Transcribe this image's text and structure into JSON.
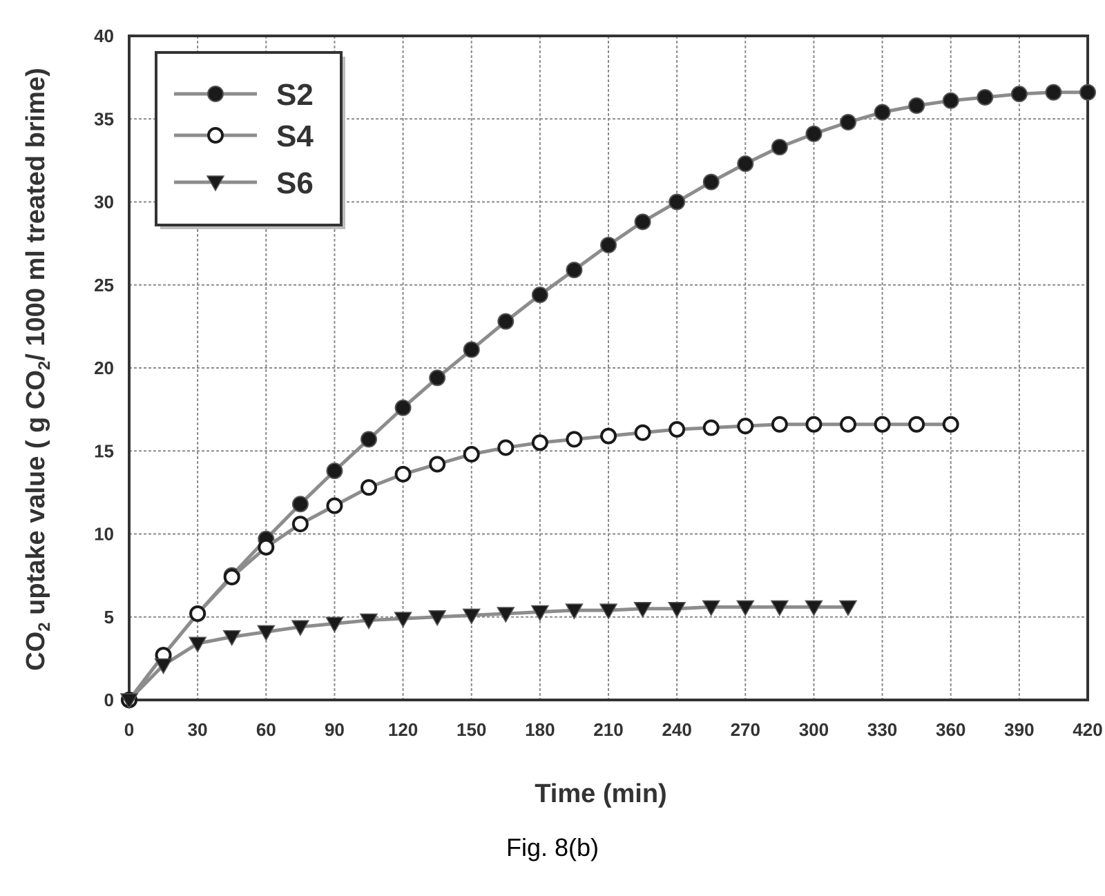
{
  "chart_data": {
    "type": "line",
    "xlabel": "Time (min)",
    "ylabel_parts": [
      "CO",
      "2",
      " uptake value ( g CO",
      "2",
      "/ 1000 ml treated brime)"
    ],
    "xlim": [
      0,
      420
    ],
    "ylim": [
      0,
      40
    ],
    "xticks": [
      0,
      30,
      60,
      90,
      120,
      150,
      180,
      210,
      240,
      270,
      300,
      330,
      360,
      390,
      420
    ],
    "xtick_labels": [
      "0",
      "30",
      "60",
      "90",
      "120",
      "150",
      "180",
      "210",
      "240",
      "270",
      "300",
      "330",
      "360",
      "390",
      "420"
    ],
    "yticks": [
      0,
      5,
      10,
      15,
      20,
      25,
      30,
      35,
      40
    ],
    "ytick_labels": [
      "0",
      "5",
      "10",
      "15",
      "20",
      "25",
      "30",
      "35",
      "40"
    ],
    "grid": true,
    "legend_position": "top-left",
    "series": [
      {
        "name": "S2",
        "marker": "filled-circle",
        "x": [
          0,
          15,
          30,
          45,
          60,
          75,
          90,
          105,
          120,
          135,
          150,
          165,
          180,
          195,
          210,
          225,
          240,
          255,
          270,
          285,
          300,
          315,
          330,
          345,
          360,
          375,
          390,
          405,
          420
        ],
        "y": [
          0,
          2.7,
          5.2,
          7.5,
          9.7,
          11.8,
          13.8,
          15.7,
          17.6,
          19.4,
          21.1,
          22.8,
          24.4,
          25.9,
          27.4,
          28.8,
          30.0,
          31.2,
          32.3,
          33.3,
          34.1,
          34.8,
          35.4,
          35.8,
          36.1,
          36.3,
          36.5,
          36.6,
          36.6
        ]
      },
      {
        "name": "S4",
        "marker": "open-circle",
        "x": [
          0,
          15,
          30,
          45,
          60,
          75,
          90,
          105,
          120,
          135,
          150,
          165,
          180,
          195,
          210,
          225,
          240,
          255,
          270,
          285,
          300,
          315,
          330,
          345,
          360
        ],
        "y": [
          0,
          2.7,
          5.2,
          7.4,
          9.2,
          10.6,
          11.7,
          12.8,
          13.6,
          14.2,
          14.8,
          15.2,
          15.5,
          15.7,
          15.9,
          16.1,
          16.3,
          16.4,
          16.5,
          16.6,
          16.6,
          16.6,
          16.6,
          16.6,
          16.6
        ]
      },
      {
        "name": "S6",
        "marker": "triangle-down",
        "x": [
          0,
          15,
          30,
          45,
          60,
          75,
          90,
          105,
          120,
          135,
          150,
          165,
          180,
          195,
          210,
          225,
          240,
          255,
          270,
          285,
          300,
          315
        ],
        "y": [
          0,
          2.1,
          3.4,
          3.8,
          4.1,
          4.4,
          4.6,
          4.8,
          4.9,
          5.0,
          5.1,
          5.2,
          5.3,
          5.4,
          5.4,
          5.5,
          5.5,
          5.6,
          5.6,
          5.6,
          5.6,
          5.6
        ]
      }
    ]
  },
  "caption": "Fig. 8(b)",
  "colors": {
    "series_line": "#8c8c8c",
    "marker": "#1a1a1a",
    "frame": "#333333",
    "grid": "#8a8a8a"
  }
}
